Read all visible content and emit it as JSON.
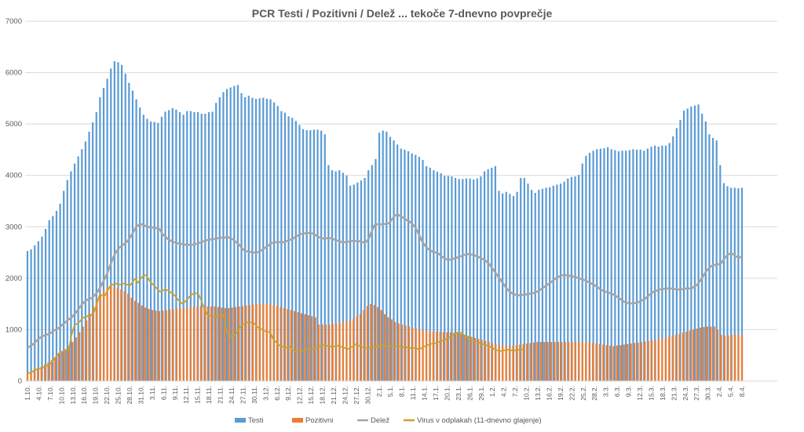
{
  "chart_data": {
    "type": "bar",
    "title": "PCR Testi / Pozitivni / Delež ... tekoče 7-dnevno povprečje",
    "ylim": [
      0,
      7000
    ],
    "yticks": [
      0,
      1000,
      2000,
      3000,
      4000,
      5000,
      6000,
      7000
    ],
    "grid": true,
    "legend_position": "bottom",
    "colors": {
      "Testi": "#5b9bd5",
      "Pozitivni": "#ed7d31",
      "Delež": "#a5a5a5",
      "Virus": "#c9a227"
    },
    "xlabels": [
      "1.10.",
      "4.10.",
      "7.10.",
      "10.10.",
      "13.10.",
      "16.10.",
      "19.10.",
      "22.10.",
      "25.10.",
      "28.10.",
      "31.10.",
      "3.11.",
      "6.11.",
      "9.11.",
      "12.11.",
      "15.11.",
      "18.11.",
      "21.11.",
      "24.11.",
      "27.11.",
      "30.11.",
      "3.12.",
      "6.12.",
      "9.12.",
      "12.12.",
      "15.12.",
      "18.12.",
      "21.12.",
      "24.12.",
      "27.12.",
      "30.12.",
      "2.1.",
      "5.1.",
      "8.1.",
      "11.1.",
      "14.1.",
      "17.1.",
      "20.1.",
      "23.1.",
      "26.1.",
      "29.1.",
      "1.2.",
      "4.2.",
      "7.2.",
      "10.2.",
      "13.2.",
      "16.2.",
      "19.2.",
      "22.2.",
      "25.2.",
      "28.2.",
      "3.3.",
      "6.3.",
      "9.3.",
      "12.3.",
      "15.3.",
      "18.3.",
      "21.3.",
      "24.3.",
      "27.3.",
      "30.3.",
      "2.4.",
      "5.4.",
      "8.4."
    ],
    "series": [
      {
        "name": "Testi",
        "type": "bar",
        "values": [
          2530,
          2560,
          2640,
          2720,
          2810,
          2960,
          3130,
          3210,
          3310,
          3450,
          3700,
          3910,
          4080,
          4230,
          4370,
          4510,
          4660,
          4850,
          5030,
          5230,
          5520,
          5700,
          5880,
          6080,
          6220,
          6200,
          6150,
          5980,
          5800,
          5650,
          5480,
          5320,
          5180,
          5100,
          5050,
          5040,
          5020,
          5140,
          5240,
          5270,
          5310,
          5280,
          5230,
          5180,
          5250,
          5250,
          5230,
          5230,
          5200,
          5200,
          5230,
          5240,
          5410,
          5520,
          5620,
          5680,
          5710,
          5740,
          5760,
          5600,
          5520,
          5550,
          5510,
          5490,
          5500,
          5510,
          5490,
          5480,
          5420,
          5350,
          5250,
          5220,
          5150,
          5120,
          5060,
          4980,
          4900,
          4880,
          4880,
          4890,
          4890,
          4870,
          4800,
          4200,
          4100,
          4080,
          4100,
          4050,
          4000,
          3800,
          3820,
          3860,
          3900,
          3950,
          4100,
          4200,
          4320,
          4830,
          4870,
          4850,
          4750,
          4680,
          4600,
          4520,
          4500,
          4470,
          4430,
          4400,
          4360,
          4300,
          4180,
          4150,
          4100,
          4070,
          4040,
          3990,
          3990,
          3980,
          3950,
          3930,
          3930,
          3940,
          3940,
          3920,
          3940,
          3980,
          4080,
          4120,
          4150,
          4180,
          3700,
          3650,
          3680,
          3640,
          3600,
          3680,
          3950,
          3950,
          3840,
          3720,
          3660,
          3720,
          3740,
          3760,
          3770,
          3800,
          3820,
          3840,
          3880,
          3940,
          3970,
          3980,
          4010,
          4230,
          4380,
          4440,
          4480,
          4510,
          4520,
          4530,
          4550,
          4510,
          4490,
          4470,
          4480,
          4480,
          4490,
          4510,
          4500,
          4500,
          4480,
          4520,
          4560,
          4580,
          4560,
          4580,
          4580,
          4630,
          4760,
          4920,
          5080,
          5260,
          5300,
          5340,
          5360,
          5380,
          5200,
          5050,
          4800,
          4730,
          4680,
          4200,
          3850,
          3790,
          3760,
          3760,
          3750,
          3760
        ]
      },
      {
        "name": "Pozitivni",
        "type": "bar",
        "values": [
          150,
          180,
          220,
          250,
          280,
          320,
          360,
          410,
          460,
          520,
          570,
          620,
          680,
          760,
          850,
          950,
          1060,
          1180,
          1310,
          1450,
          1580,
          1700,
          1770,
          1830,
          1850,
          1830,
          1810,
          1780,
          1750,
          1700,
          1620,
          1560,
          1520,
          1470,
          1430,
          1400,
          1380,
          1370,
          1360,
          1370,
          1380,
          1390,
          1400,
          1410,
          1420,
          1420,
          1430,
          1440,
          1440,
          1450,
          1460,
          1460,
          1450,
          1450,
          1450,
          1440,
          1430,
          1420,
          1420,
          1430,
          1440,
          1450,
          1460,
          1470,
          1480,
          1490,
          1500,
          1500,
          1500,
          1500,
          1490,
          1480,
          1460,
          1440,
          1420,
          1400,
          1380,
          1360,
          1340,
          1320,
          1300,
          1280,
          1260,
          1240,
          1100,
          1100,
          1100,
          1100,
          1110,
          1120,
          1130,
          1140,
          1160,
          1180,
          1210,
          1260,
          1310,
          1380,
          1460,
          1500,
          1480,
          1440,
          1380,
          1300,
          1240,
          1200,
          1150,
          1120,
          1100,
          1080,
          1060,
          1040,
          1020,
          1000,
          990,
          980,
          970,
          960,
          960,
          960,
          950,
          950,
          950,
          940,
          930,
          920,
          900,
          880,
          860,
          840,
          820,
          800,
          780,
          760,
          740,
          720,
          700,
          690,
          680,
          680,
          690,
          700,
          710,
          720,
          730,
          740,
          750,
          760,
          760,
          760,
          760,
          760,
          760,
          760,
          760,
          760,
          760,
          760,
          760,
          760,
          760,
          760,
          750,
          740,
          730,
          720,
          710,
          700,
          690,
          680,
          690,
          700,
          710,
          720,
          730,
          740,
          750,
          760,
          770,
          780,
          790,
          800,
          810,
          820,
          840,
          860,
          880,
          900,
          920,
          940,
          960,
          980,
          1000,
          1020,
          1040,
          1050,
          1060,
          1060,
          1060,
          1000,
          900,
          880,
          890,
          900,
          900,
          900,
          900
        ]
      },
      {
        "name": "Delež",
        "type": "line",
        "values": [
          650,
          680,
          720,
          780,
          830,
          870,
          890,
          910,
          940,
          980,
          1010,
          1050,
          1100,
          1150,
          1200,
          1240,
          1300,
          1370,
          1450,
          1520,
          1570,
          1600,
          1620,
          1680,
          1750,
          1850,
          1960,
          2080,
          2230,
          2380,
          2500,
          2580,
          2630,
          2670,
          2720,
          2800,
          2900,
          3000,
          3040,
          3050,
          3020,
          3000,
          2990,
          2980,
          2970,
          2950,
          2850,
          2800,
          2750,
          2720,
          2700,
          2680,
          2670,
          2660,
          2650,
          2650,
          2650,
          2660,
          2680,
          2700,
          2720,
          2740,
          2750,
          2760,
          2770,
          2780,
          2790,
          2790,
          2800,
          2780,
          2750,
          2700,
          2650,
          2580,
          2530,
          2520,
          2510,
          2500,
          2500,
          2520,
          2560,
          2600,
          2640,
          2680,
          2700,
          2700,
          2700,
          2700,
          2720,
          2740,
          2760,
          2800,
          2830,
          2860,
          2870,
          2880,
          2880,
          2870,
          2840,
          2800,
          2780,
          2770,
          2780,
          2780,
          2760,
          2740,
          2720,
          2700,
          2700,
          2710,
          2720,
          2730,
          2720,
          2720,
          2700,
          2700,
          2760,
          2900,
          3030,
          3050,
          3050,
          3050,
          3060,
          3070,
          3150,
          3220,
          3240,
          3200,
          3170,
          3130,
          3100,
          3050,
          2980,
          2870,
          2740,
          2650,
          2580,
          2540,
          2510,
          2500,
          2470,
          2420,
          2380,
          2360,
          2360,
          2380,
          2400,
          2420,
          2440,
          2460,
          2470,
          2460,
          2450,
          2420,
          2400,
          2370,
          2330,
          2280,
          2200,
          2120,
          2040,
          1960,
          1880,
          1800,
          1740,
          1700,
          1680,
          1670,
          1670,
          1680,
          1690,
          1700,
          1710,
          1730,
          1760,
          1800,
          1840,
          1880,
          1920,
          1970,
          2010,
          2040,
          2060,
          2060,
          2050,
          2040,
          2030,
          2010,
          1990,
          1970,
          1950,
          1920,
          1890,
          1860,
          1820,
          1780,
          1750,
          1730,
          1710,
          1690,
          1660,
          1620,
          1580,
          1540,
          1520,
          1510,
          1510,
          1520,
          1540,
          1570,
          1600,
          1650,
          1700,
          1740,
          1760,
          1780,
          1790,
          1800,
          1800,
          1800,
          1790,
          1780,
          1780,
          1790,
          1800,
          1800,
          1810,
          1840,
          1890,
          1970,
          2060,
          2150,
          2210,
          2250,
          2260,
          2270,
          2300,
          2380,
          2450,
          2480,
          2470,
          2420,
          2410,
          2410
        ]
      },
      {
        "name": "Virus v odplakah (11-dnevno glajenje)",
        "type": "line",
        "values": [
          150,
          160,
          190,
          220,
          240,
          250,
          270,
          300,
          320,
          380,
          450,
          520,
          560,
          580,
          600,
          620,
          900,
          1080,
          1120,
          1160,
          1230,
          1240,
          1270,
          1280,
          1330,
          1480,
          1660,
          1670,
          1660,
          1760,
          1850,
          1880,
          1900,
          1870,
          1880,
          1900,
          1880,
          1850,
          1920,
          1990,
          1910,
          1990,
          2050,
          2060,
          1970,
          1900,
          1850,
          1790,
          1740,
          1760,
          1780,
          1760,
          1720,
          1680,
          1620,
          1550,
          1510,
          1540,
          1600,
          1660,
          1700,
          1710,
          1680,
          1560,
          1420,
          1300,
          1270,
          1250,
          1240,
          1270,
          1300,
          1280,
          1000,
          880,
          870,
          880,
          960,
          1050,
          1100,
          1130,
          1140,
          1140,
          1130,
          1060,
          1030,
          1000,
          970,
          960,
          940,
          810,
          760,
          700,
          680,
          660,
          650,
          670,
          600,
          580,
          570,
          580,
          600,
          620,
          610,
          620,
          640,
          660,
          680,
          700,
          690,
          680,
          670,
          670,
          690,
          680,
          660,
          640,
          620,
          650,
          680,
          720,
          690,
          670,
          650,
          640,
          650,
          660,
          670,
          680,
          690,
          700,
          690,
          690,
          680,
          680,
          680,
          670,
          660,
          660,
          650,
          640,
          640,
          630,
          620,
          650,
          680,
          700,
          720,
          730,
          740,
          760,
          780,
          800,
          830,
          860,
          890,
          920,
          950,
          940,
          900,
          860,
          830,
          800,
          780,
          760,
          740,
          720,
          700,
          680,
          660,
          620,
          600,
          580,
          590,
          600,
          610,
          600,
          590,
          600,
          610,
          610,
          620
        ]
      }
    ]
  }
}
